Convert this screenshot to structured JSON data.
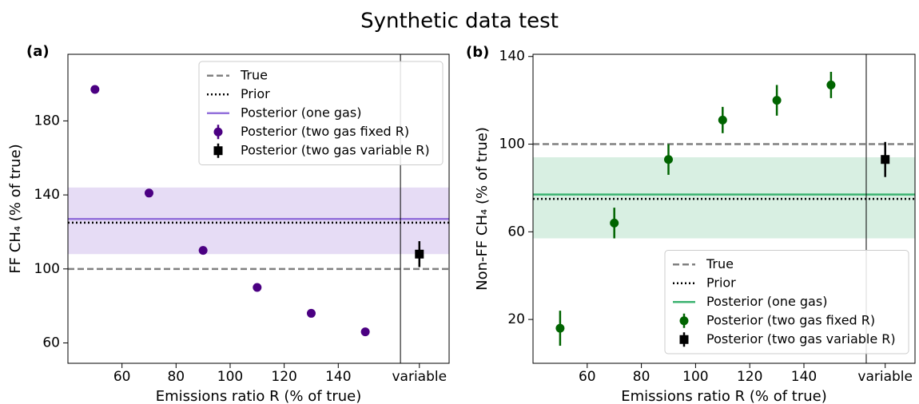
{
  "title": "Synthetic data test",
  "chart_data": [
    {
      "type": "scatter",
      "label": "(a)",
      "xlabel": "Emissions ratio R (% of true)",
      "ylabel": "FF CH₄ (% of true)",
      "xlim": [
        40,
        181
      ],
      "ylim": [
        49,
        216
      ],
      "xticks": [
        60,
        80,
        100,
        120,
        140,
        {
          "value": 170,
          "label": "variable"
        }
      ],
      "yticks": [
        60,
        100,
        140,
        180
      ],
      "separator_x": 163,
      "legend_loc": "upper right",
      "series": [
        {
          "name": "True",
          "kind": "hline",
          "style": "dashed",
          "color": "#808080",
          "value": 100
        },
        {
          "name": "Prior",
          "kind": "hline",
          "style": "dotted",
          "color": "#000000",
          "value": 125
        },
        {
          "name": "Posterior (one gas)",
          "kind": "hline",
          "style": "solid",
          "color": "#9370db",
          "band_color": "#e6dcf5",
          "value": 127,
          "band": [
            108,
            144
          ]
        },
        {
          "name": "Posterior (two gas fixed R)",
          "kind": "points",
          "marker": "circle",
          "color": "#4b0082",
          "x": [
            50,
            70,
            90,
            110,
            130,
            150
          ],
          "values": [
            197,
            141,
            110,
            90,
            76,
            66
          ]
        },
        {
          "name": "Posterior (two gas variable R)",
          "kind": "points",
          "marker": "square",
          "color": "#000000",
          "x": [
            170
          ],
          "values": [
            108
          ],
          "errors": [
            7
          ]
        }
      ]
    },
    {
      "type": "scatter",
      "label": "(b)",
      "xlabel": "Emissions ratio R (% of true)",
      "ylabel": "Non-FF CH₄ (% of true)",
      "xlim": [
        40,
        181
      ],
      "ylim": [
        0,
        141
      ],
      "xticks": [
        60,
        80,
        100,
        120,
        140,
        {
          "value": 170,
          "label": "variable"
        }
      ],
      "yticks": [
        20,
        60,
        100,
        140
      ],
      "separator_x": 163,
      "legend_loc": "lower right",
      "series": [
        {
          "name": "True",
          "kind": "hline",
          "style": "dashed",
          "color": "#808080",
          "value": 100
        },
        {
          "name": "Prior",
          "kind": "hline",
          "style": "dotted",
          "color": "#000000",
          "value": 75
        },
        {
          "name": "Posterior (one gas)",
          "kind": "hline",
          "style": "solid",
          "color": "#3cb371",
          "band_color": "#d8efe2",
          "value": 77,
          "band": [
            57,
            94
          ]
        },
        {
          "name": "Posterior (two gas fixed R)",
          "kind": "points",
          "marker": "circle",
          "color": "#006400",
          "x": [
            50,
            70,
            90,
            110,
            130,
            150
          ],
          "values": [
            16,
            64,
            93,
            111,
            120,
            127
          ],
          "errors": [
            8,
            7,
            7,
            6,
            7,
            6
          ]
        },
        {
          "name": "Posterior (two gas variable R)",
          "kind": "points",
          "marker": "square",
          "color": "#000000",
          "x": [
            170
          ],
          "values": [
            93
          ],
          "errors": [
            8
          ]
        }
      ]
    }
  ]
}
